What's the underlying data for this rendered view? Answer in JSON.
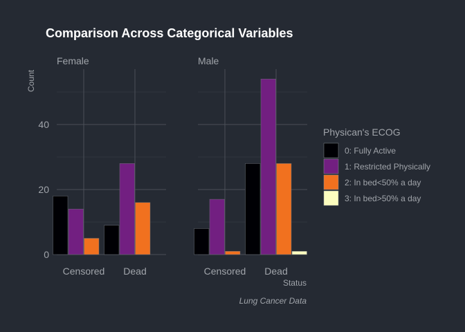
{
  "chart_data": {
    "type": "bar",
    "title": "Comparison Across Categorical Variables",
    "ylabel": "Count",
    "xlabel": "Status",
    "caption": "Lung Cancer Data",
    "ylim": [
      0,
      58
    ],
    "yticks": [
      0,
      20,
      40
    ],
    "categories": [
      "Censored",
      "Dead"
    ],
    "legend_title": "Physican's ECOG",
    "legend_position": "right",
    "grid": true,
    "facets": [
      {
        "name": "Female",
        "series": [
          {
            "name": "0: Fully Active",
            "values": [
              18,
              9
            ]
          },
          {
            "name": "1: Restricted Physically",
            "values": [
              14,
              28
            ]
          },
          {
            "name": "2: In bed<50% a day",
            "values": [
              5,
              16
            ]
          },
          {
            "name": "3: In bed>50% a day",
            "values": [
              0,
              0
            ]
          }
        ]
      },
      {
        "name": "Male",
        "series": [
          {
            "name": "0: Fully Active",
            "values": [
              8,
              28
            ]
          },
          {
            "name": "1: Restricted Physically",
            "values": [
              17,
              54
            ]
          },
          {
            "name": "2: In bed<50% a day",
            "values": [
              1,
              28
            ]
          },
          {
            "name": "3: In bed>50% a day",
            "values": [
              0,
              1
            ]
          }
        ]
      }
    ],
    "colors": [
      "#000004",
      "#721f81",
      "#f1711f",
      "#fcfdbf"
    ]
  }
}
